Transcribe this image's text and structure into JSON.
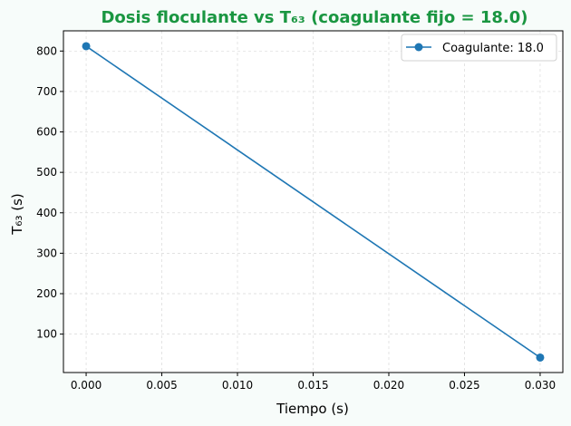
{
  "chart_data": {
    "type": "line",
    "title": "Dosis floculante vs T₆₃ (coagulante fijo = 18.0)",
    "xlabel": "Tiempo (s)",
    "ylabel": "T₆₃ (s)",
    "xlim": [
      -0.0015,
      0.0315
    ],
    "ylim": [
      5,
      850
    ],
    "xticks": [
      0.0,
      0.005,
      0.01,
      0.015,
      0.02,
      0.025,
      0.03
    ],
    "xtick_labels": [
      "0.000",
      "0.005",
      "0.010",
      "0.015",
      "0.020",
      "0.025",
      "0.030"
    ],
    "yticks": [
      100,
      200,
      300,
      400,
      500,
      600,
      700,
      800
    ],
    "ytick_labels": [
      "100",
      "200",
      "300",
      "400",
      "500",
      "600",
      "700",
      "800"
    ],
    "grid": true,
    "legend_position": "top-right",
    "series": [
      {
        "name": "Coagulante: 18.0",
        "color": "#1f77b4",
        "marker": "circle",
        "x": [
          0.0,
          0.03
        ],
        "y": [
          812,
          42
        ]
      }
    ]
  },
  "colors": {
    "title": "#1a9641",
    "background": "#f7fcfa",
    "plot_background": "#ffffff"
  }
}
